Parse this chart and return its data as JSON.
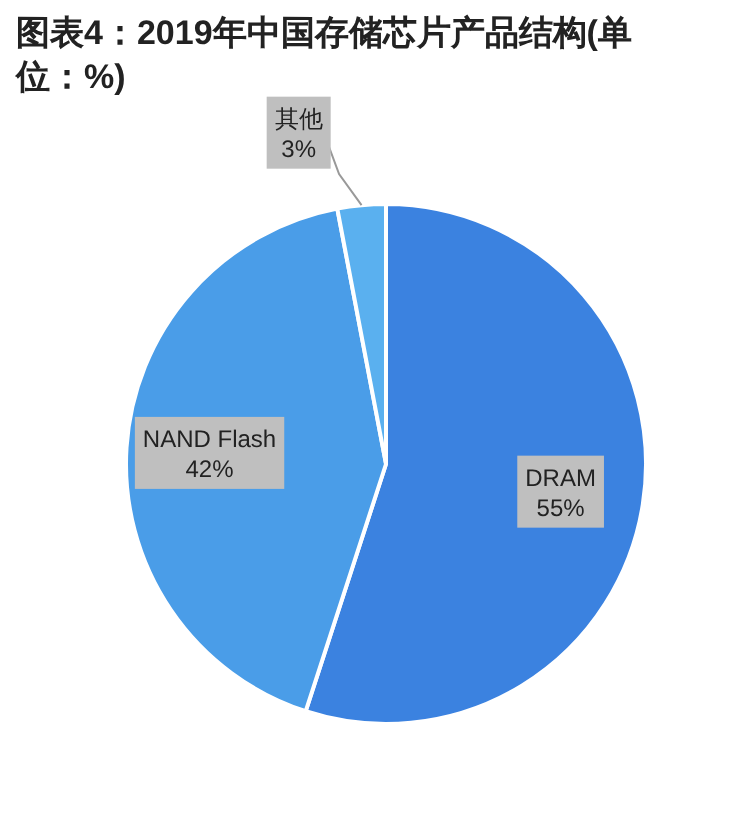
{
  "chart_data": {
    "type": "pie",
    "title": "图表4：2019年中国存储芯片产品结构(单位：%)",
    "categories": [
      "DRAM",
      "NAND Flash",
      "其他"
    ],
    "values": [
      55,
      42,
      3
    ],
    "value_labels": [
      "55%",
      "42%",
      "3%"
    ],
    "colors": [
      "#3b82e0",
      "#4a9de8",
      "#5ab0ef"
    ]
  }
}
